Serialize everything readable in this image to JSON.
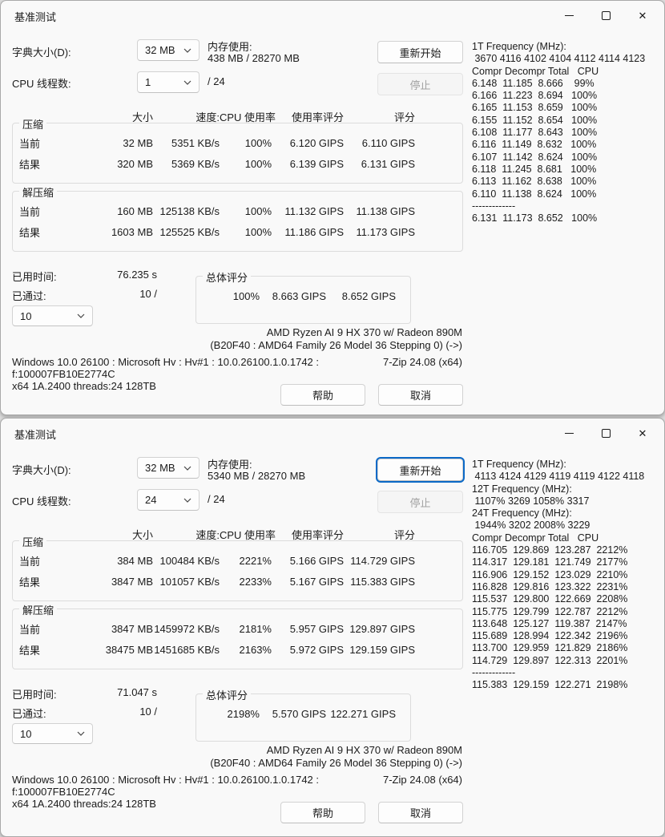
{
  "windows": [
    {
      "title": "基准测试",
      "dict_label": "字典大小(D):",
      "dict_value": "32 MB",
      "mem_label": "内存使用:",
      "mem_value": "438 MB / 28270 MB",
      "threads_label": "CPU 线程数:",
      "threads_value": "1",
      "threads_total": "/ 24",
      "restart_label": "重新开始",
      "restart_focused": false,
      "stop_label": "停止",
      "col_headers": {
        "size": "大小",
        "speed": "速度:",
        "cpu": "CPU 使用率",
        "usage_rating": "使用率评分",
        "rating": "评分"
      },
      "compress": {
        "legend": "压缩",
        "rows": [
          {
            "label": "当前",
            "size": "32 MB",
            "speed": "5351 KB/s",
            "cpu": "100%",
            "usage_rating": "6.120 GIPS",
            "rating": "6.110 GIPS"
          },
          {
            "label": "结果",
            "size": "320 MB",
            "speed": "5369 KB/s",
            "cpu": "100%",
            "usage_rating": "6.139 GIPS",
            "rating": "6.131 GIPS"
          }
        ]
      },
      "decompress": {
        "legend": "解压缩",
        "rows": [
          {
            "label": "当前",
            "size": "160 MB",
            "speed": "125138 KB/s",
            "cpu": "100%",
            "usage_rating": "11.132 GIPS",
            "rating": "11.138 GIPS"
          },
          {
            "label": "结果",
            "size": "1603 MB",
            "speed": "125525 KB/s",
            "cpu": "100%",
            "usage_rating": "11.186 GIPS",
            "rating": "11.173 GIPS"
          }
        ]
      },
      "elapsed_label": "已用时间:",
      "elapsed_value": "76.235 s",
      "passes_label": "已通过:",
      "passes_value": "10 /",
      "passes_combo": "10",
      "overall": {
        "legend": "总体评分",
        "cpu": "100%",
        "usage_rating": "8.663 GIPS",
        "rating": "8.652 GIPS"
      },
      "cpu_line1": "AMD Ryzen AI 9 HX 370 w/ Radeon 890M",
      "cpu_line2": "(B20F40 : AMD64 Family 26 Model 36 Stepping 0) (->)",
      "sys_line": "Windows 10.0 26100 : Microsoft Hv : Hv#1 : 10.0.26100.1.0.1742 :",
      "app_version": "7-Zip 24.08 (x64)",
      "hash_line": "f:100007FB10E2774C",
      "arch_line": "x64 1A.2400 threads:24 128TB",
      "help_label": "帮助",
      "cancel_label": "取消",
      "freq_lines": [
        "1T Frequency (MHz):",
        " 3670 4116 4102 4104 4112 4114 4123",
        "Compr Decompr Total   CPU",
        "6.148  11.185  8.666    99%",
        "6.166  11.223  8.694   100%",
        "6.165  11.153  8.659   100%",
        "6.155  11.152  8.654   100%",
        "6.108  11.177  8.643   100%",
        "6.116  11.149  8.632   100%",
        "6.107  11.142  8.624   100%",
        "6.118  11.245  8.681   100%",
        "6.113  11.162  8.638   100%",
        "6.110  11.138  8.624   100%",
        "-------------",
        "6.131  11.173  8.652   100%"
      ]
    },
    {
      "title": "基准测试",
      "dict_label": "字典大小(D):",
      "dict_value": "32 MB",
      "mem_label": "内存使用:",
      "mem_value": "5340 MB / 28270 MB",
      "threads_label": "CPU 线程数:",
      "threads_value": "24",
      "threads_total": "/ 24",
      "restart_label": "重新开始",
      "restart_focused": true,
      "stop_label": "停止",
      "col_headers": {
        "size": "大小",
        "speed": "速度:",
        "cpu": "CPU 使用率",
        "usage_rating": "使用率评分",
        "rating": "评分"
      },
      "compress": {
        "legend": "压缩",
        "rows": [
          {
            "label": "当前",
            "size": "384 MB",
            "speed": "100484 KB/s",
            "cpu": "2221%",
            "usage_rating": "5.166 GIPS",
            "rating": "114.729 GIPS"
          },
          {
            "label": "结果",
            "size": "3847 MB",
            "speed": "101057 KB/s",
            "cpu": "2233%",
            "usage_rating": "5.167 GIPS",
            "rating": "115.383 GIPS"
          }
        ]
      },
      "decompress": {
        "legend": "解压缩",
        "rows": [
          {
            "label": "当前",
            "size": "3847 MB",
            "speed": "1459972 KB/s",
            "cpu": "2181%",
            "usage_rating": "5.957 GIPS",
            "rating": "129.897 GIPS"
          },
          {
            "label": "结果",
            "size": "38475 MB",
            "speed": "1451685 KB/s",
            "cpu": "2163%",
            "usage_rating": "5.972 GIPS",
            "rating": "129.159 GIPS"
          }
        ]
      },
      "elapsed_label": "已用时间:",
      "elapsed_value": "71.047 s",
      "passes_label": "已通过:",
      "passes_value": "10 /",
      "passes_combo": "10",
      "overall": {
        "legend": "总体评分",
        "cpu": "2198%",
        "usage_rating": "5.570 GIPS",
        "rating": "122.271 GIPS"
      },
      "cpu_line1": "AMD Ryzen AI 9 HX 370 w/ Radeon 890M",
      "cpu_line2": "(B20F40 : AMD64 Family 26 Model 36 Stepping 0) (->)",
      "sys_line": "Windows 10.0 26100 : Microsoft Hv : Hv#1 : 10.0.26100.1.0.1742 :",
      "app_version": "7-Zip 24.08 (x64)",
      "hash_line": "f:100007FB10E2774C",
      "arch_line": "x64 1A.2400 threads:24 128TB",
      "help_label": "帮助",
      "cancel_label": "取消",
      "freq_lines": [
        "1T Frequency (MHz):",
        " 4113 4124 4129 4119 4119 4122 4118",
        "12T Frequency (MHz):",
        " 1107% 3269 1058% 3317",
        "24T Frequency (MHz):",
        " 1944% 3202 2008% 3229",
        "Compr Decompr Total   CPU",
        "116.705  129.869  123.287  2212%",
        "114.317  129.181  121.749  2177%",
        "116.906  129.152  123.029  2210%",
        "116.828  129.816  123.322  2231%",
        "115.537  129.800  122.669  2208%",
        "115.775  129.799  122.787  2212%",
        "113.648  125.127  119.387  2147%",
        "115.689  128.994  122.342  2196%",
        "113.700  129.959  121.829  2186%",
        "114.729  129.897  122.313  2201%",
        "-------------",
        "115.383  129.159  122.271  2198%"
      ]
    }
  ]
}
